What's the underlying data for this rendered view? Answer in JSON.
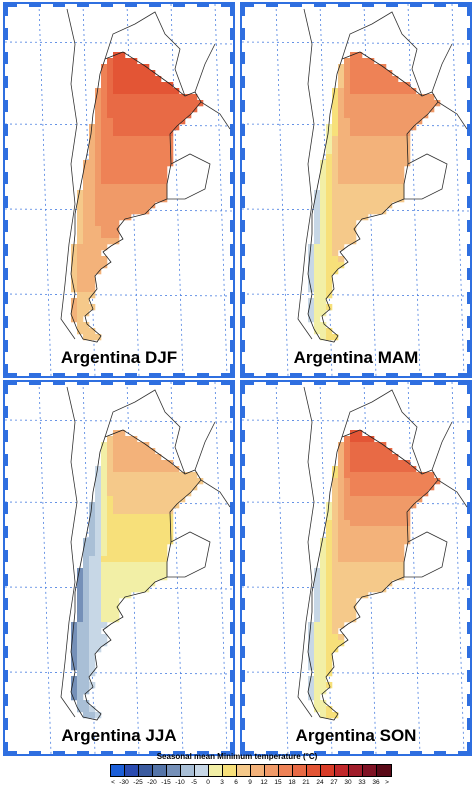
{
  "panels": [
    {
      "id": "djf",
      "label": "Argentina DJF",
      "season": "DJF"
    },
    {
      "id": "mam",
      "label": "Argentina MAM",
      "season": "MAM"
    },
    {
      "id": "jja",
      "label": "Argentina JJA",
      "season": "JJA"
    },
    {
      "id": "son",
      "label": "Argentina SON",
      "season": "SON"
    }
  ],
  "colorbar": {
    "title": "Seasonal mean Minimum temperature (°C)",
    "tick_labels": [
      "<",
      "-30",
      "-25",
      "-20",
      "-15",
      "-10",
      "-5",
      "0",
      "3",
      "6",
      "9",
      "12",
      "15",
      "18",
      "21",
      "24",
      "27",
      "30",
      "33",
      "36",
      ">"
    ],
    "colors": [
      "#1c5fd8",
      "#2a4bb0",
      "#3a5a9e",
      "#5474a8",
      "#7590b8",
      "#a9bfd6",
      "#c7d7e6",
      "#f2efa6",
      "#f7e07a",
      "#f5c98a",
      "#f3b27a",
      "#f09a68",
      "#ee8256",
      "#e86a45",
      "#e35535",
      "#d83c28",
      "#c0282a",
      "#a01d2a",
      "#7f1224",
      "#5a0a18"
    ]
  },
  "chart_data": {
    "type": "heatmap",
    "title": "",
    "legend_title": "Seasonal mean Minimum temperature (°C)",
    "units": "°C",
    "bins": [
      -30,
      -25,
      -20,
      -15,
      -10,
      -5,
      0,
      3,
      6,
      9,
      12,
      15,
      18,
      21,
      24,
      27,
      30,
      33,
      36
    ],
    "maps": [
      {
        "season": "DJF",
        "label": "Argentina DJF",
        "north_max": 21,
        "central": 15,
        "south": 6,
        "andes": 9
      },
      {
        "season": "MAM",
        "label": "Argentina MAM",
        "north_max": 15,
        "central": 9,
        "south": 3,
        "andes": 0
      },
      {
        "season": "JJA",
        "label": "Argentina JJA",
        "north_max": 9,
        "central": 3,
        "south": -5,
        "andes": -10
      },
      {
        "season": "SON",
        "label": "Argentina SON",
        "north_max": 18,
        "central": 9,
        "south": 3,
        "andes": 0
      }
    ]
  }
}
